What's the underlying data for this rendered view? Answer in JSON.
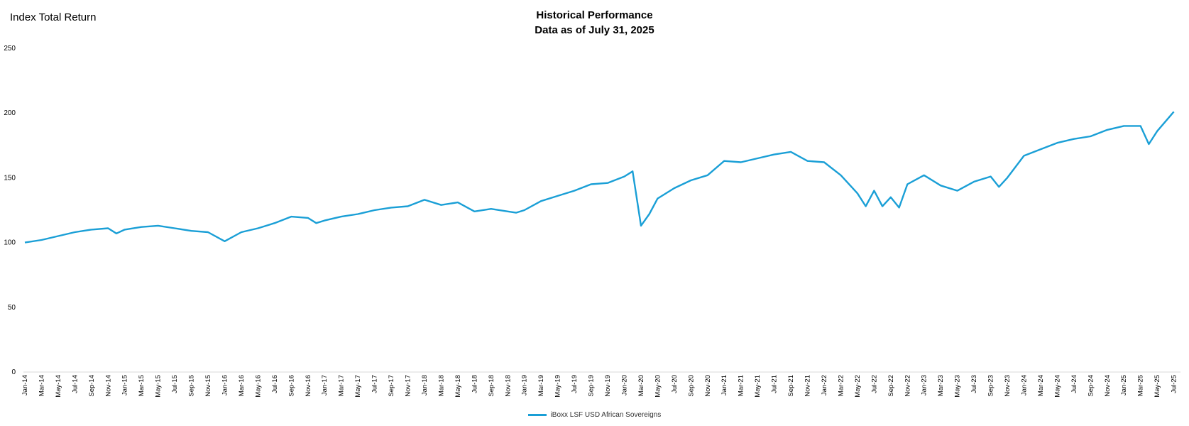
{
  "header": {
    "ylabel": "Index Total Return",
    "title_line1": "Historical Performance",
    "title_line2": "Data as of July 31, 2025"
  },
  "chart_data": {
    "type": "line",
    "title": "Historical Performance",
    "subtitle": "Data as of July 31, 2025",
    "ylabel": "Index Total Return",
    "xlabel": "",
    "ylim": [
      0,
      250
    ],
    "yticks": [
      0,
      50,
      100,
      150,
      200,
      250
    ],
    "grid": false,
    "legend_position": "bottom",
    "color": "#1a9fd6",
    "x_ticks": [
      "Jan-14",
      "Mar-14",
      "May-14",
      "Jul-14",
      "Sep-14",
      "Nov-14",
      "Jan-15",
      "Mar-15",
      "May-15",
      "Jul-15",
      "Sep-15",
      "Nov-15",
      "Jan-16",
      "Mar-16",
      "May-16",
      "Jul-16",
      "Sep-16",
      "Nov-16",
      "Jan-17",
      "Mar-17",
      "May-17",
      "Jul-17",
      "Sep-17",
      "Nov-17",
      "Jan-18",
      "Mar-18",
      "May-18",
      "Jul-18",
      "Sep-18",
      "Nov-18",
      "Jan-19",
      "Mar-19",
      "May-19",
      "Jul-19",
      "Sep-19",
      "Nov-19",
      "Jan-20",
      "Mar-20",
      "May-20",
      "Jul-20",
      "Sep-20",
      "Nov-20",
      "Jan-21",
      "Mar-21",
      "May-21",
      "Jul-21",
      "Sep-21",
      "Nov-21",
      "Jan-22",
      "Mar-22",
      "May-22",
      "Jul-22",
      "Sep-22",
      "Nov-22",
      "Jan-23",
      "Mar-23",
      "May-23",
      "Jul-23",
      "Sep-23",
      "Nov-23",
      "Jan-24",
      "Mar-24",
      "May-24",
      "Jul-24",
      "Sep-24",
      "Nov-24",
      "Jan-25",
      "Mar-25",
      "May-25",
      "Jul-25"
    ],
    "series": [
      {
        "name": "iBoxx LSF USD African Sovereigns",
        "x": [
          "Jan-14",
          "Mar-14",
          "May-14",
          "Jul-14",
          "Sep-14",
          "Nov-14",
          "Dec-14",
          "Jan-15",
          "Mar-15",
          "May-15",
          "Jul-15",
          "Sep-15",
          "Nov-15",
          "Jan-16",
          "Mar-16",
          "May-16",
          "Jul-16",
          "Sep-16",
          "Nov-16",
          "Dec-16",
          "Jan-17",
          "Mar-17",
          "May-17",
          "Jul-17",
          "Sep-17",
          "Nov-17",
          "Jan-18",
          "Mar-18",
          "May-18",
          "Jul-18",
          "Sep-18",
          "Nov-18",
          "Dec-18",
          "Jan-19",
          "Mar-19",
          "May-19",
          "Jul-19",
          "Sep-19",
          "Nov-19",
          "Jan-20",
          "Feb-20",
          "Mar-20",
          "Apr-20",
          "May-20",
          "Jul-20",
          "Sep-20",
          "Nov-20",
          "Jan-21",
          "Mar-21",
          "May-21",
          "Jul-21",
          "Sep-21",
          "Nov-21",
          "Jan-22",
          "Mar-22",
          "May-22",
          "Jun-22",
          "Jul-22",
          "Aug-22",
          "Sep-22",
          "Oct-22",
          "Nov-22",
          "Jan-23",
          "Mar-23",
          "May-23",
          "Jul-23",
          "Sep-23",
          "Oct-23",
          "Nov-23",
          "Jan-24",
          "Mar-24",
          "May-24",
          "Jul-24",
          "Sep-24",
          "Nov-24",
          "Jan-25",
          "Mar-25",
          "Apr-25",
          "May-25",
          "Jul-25"
        ],
        "values": [
          100,
          102,
          105,
          108,
          110,
          111,
          107,
          110,
          112,
          113,
          111,
          109,
          108,
          101,
          108,
          111,
          115,
          120,
          119,
          115,
          117,
          120,
          122,
          125,
          127,
          128,
          133,
          129,
          131,
          124,
          126,
          124,
          123,
          125,
          132,
          136,
          140,
          145,
          146,
          151,
          155,
          113,
          122,
          134,
          142,
          148,
          152,
          163,
          162,
          165,
          168,
          170,
          163,
          162,
          152,
          138,
          128,
          140,
          128,
          135,
          127,
          145,
          152,
          144,
          140,
          147,
          151,
          143,
          150,
          167,
          172,
          177,
          180,
          182,
          187,
          190,
          190,
          176,
          186,
          201
        ]
      }
    ]
  }
}
